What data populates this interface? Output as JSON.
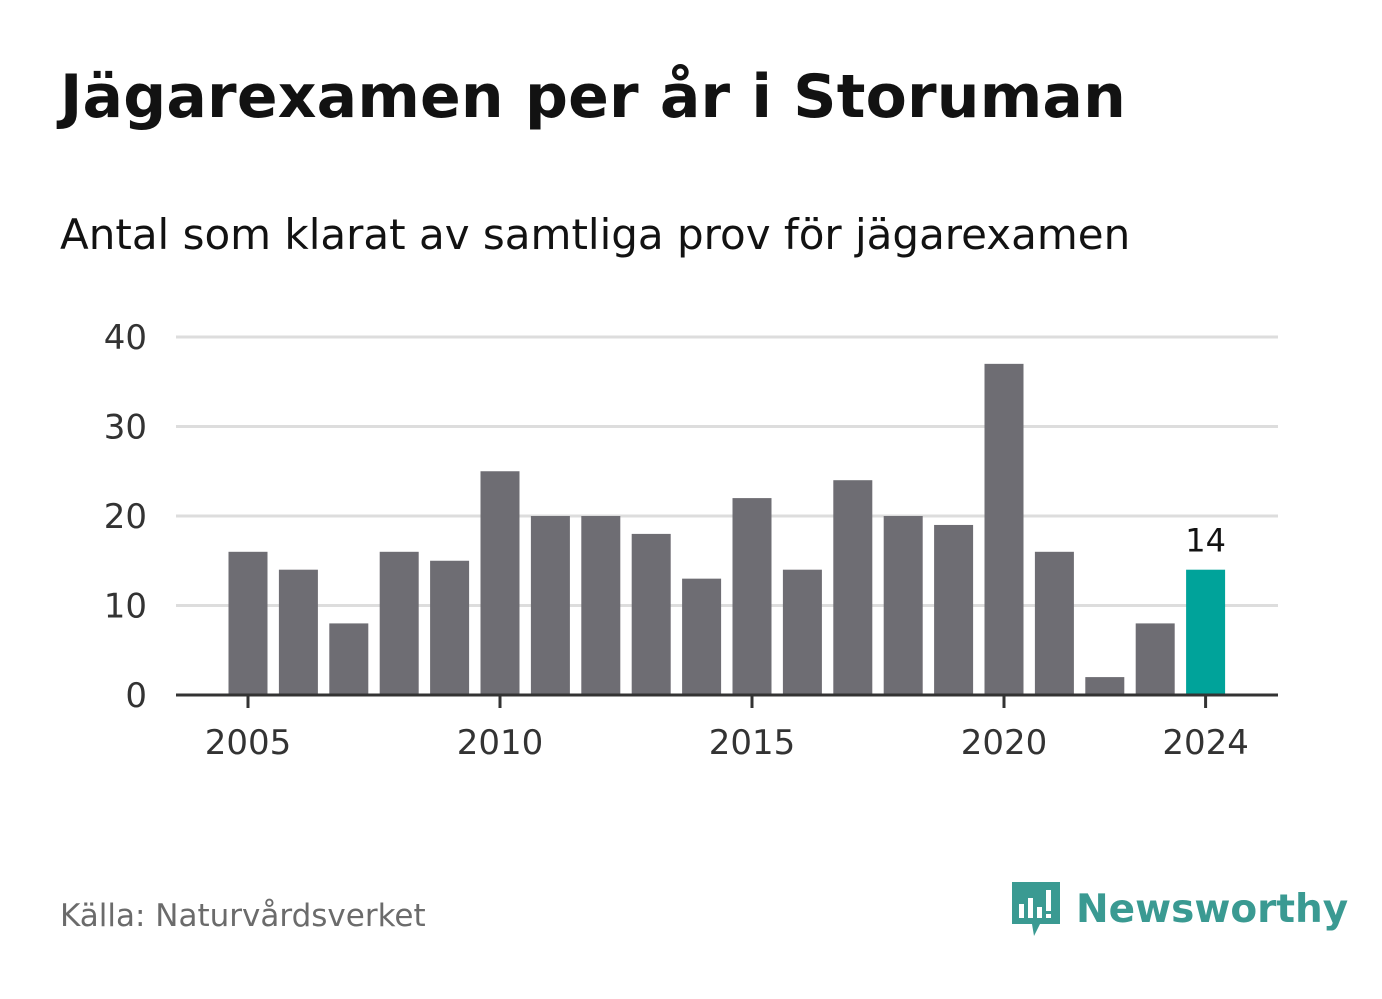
{
  "title": "Jägarexamen per år i Storuman",
  "subtitle": "Antal som klarat av samtliga prov för jägarexamen",
  "source": "Källa: Naturvårdsverket",
  "brand": {
    "name": "Newsworthy",
    "color": "#3a9a92"
  },
  "colors": {
    "bar": "#6e6d73",
    "highlight": "#00a39a",
    "grid": "#dddddd",
    "axis": "#333333"
  },
  "chart_data": {
    "type": "bar",
    "x": [
      2005,
      2006,
      2007,
      2008,
      2009,
      2010,
      2011,
      2012,
      2013,
      2014,
      2015,
      2016,
      2017,
      2018,
      2019,
      2020,
      2021,
      2022,
      2023,
      2024
    ],
    "values": [
      16,
      14,
      8,
      16,
      15,
      25,
      20,
      20,
      18,
      13,
      22,
      14,
      24,
      20,
      19,
      37,
      16,
      2,
      8,
      14
    ],
    "highlight": {
      "x": 2024,
      "label": "14"
    },
    "x_ticks": [
      "2005",
      "2010",
      "2015",
      "2020",
      "2024"
    ],
    "y_ticks": [
      "0",
      "10",
      "20",
      "30",
      "40"
    ],
    "ylim": [
      0,
      40
    ],
    "grid": true,
    "legend": "none"
  }
}
